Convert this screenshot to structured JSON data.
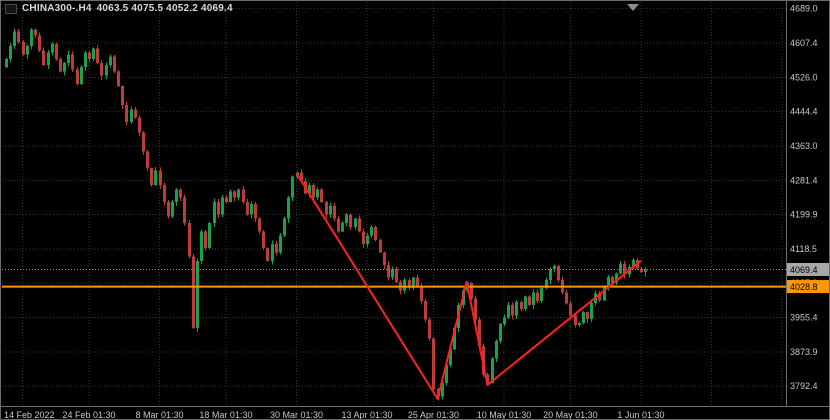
{
  "header": {
    "symbol_period": "CHINA300-.H4",
    "ohlc": "4063.5 4075.5 4052.2 4069.4"
  },
  "colors": {
    "background": "#000000",
    "grid": "#333333",
    "axis_line": "#6e6e6e",
    "axis_text": "#c8c8c8",
    "bull": "#17a24e",
    "bear": "#c23b3b",
    "trendline": "#ff2020",
    "hline": "#ff9800",
    "price_tag_bg": "#a8a8a8",
    "hline_tag_bg": "#ff9800",
    "tag_text": "#000000",
    "shift_marker": "#8c8c8c"
  },
  "chart_data": {
    "type": "candlestick",
    "symbol": "CHINA300-",
    "timeframe": "H4",
    "title": "CHINA300-.H4 4063.5 4075.5 4052.2 4069.4",
    "ylim": [
      3745,
      4705
    ],
    "y_ticks": [
      4689.0,
      4607.4,
      4526.0,
      4444.4,
      4363.0,
      4281.4,
      4199.9,
      4118.5,
      4037.0,
      3955.4,
      3873.9,
      3792.4
    ],
    "x_ticks": [
      {
        "index": 4,
        "label": "14 Feb 2022"
      },
      {
        "index": 20,
        "label": "24 Feb 01:30"
      },
      {
        "index": 37,
        "label": "8 Mar 01:30"
      },
      {
        "index": 53,
        "label": "18 Mar 01:30"
      },
      {
        "index": 70,
        "label": "30 Mar 01:30"
      },
      {
        "index": 87,
        "label": "13 Apr 01:30"
      },
      {
        "index": 103,
        "label": "25 Apr 01:30"
      },
      {
        "index": 120,
        "label": "10 May 01:30"
      },
      {
        "index": 136,
        "label": "20 May 01:30"
      },
      {
        "index": 153,
        "label": "1 Jun 01:30"
      },
      {
        "index": 170,
        "label": ""
      },
      {
        "index": 187,
        "label": ""
      }
    ],
    "current_bar": {
      "open": 4063.5,
      "high": 4075.5,
      "low": 4052.2,
      "close": 4069.4
    },
    "current_price": 4069.4,
    "current_price_label": "4069.4",
    "horizontal_line": {
      "price": 4028.8,
      "label": "4028.8"
    },
    "trendline": {
      "points": [
        [
          70,
          4298
        ],
        [
          104,
          3762
        ],
        [
          111,
          4040
        ],
        [
          116,
          3795
        ],
        [
          153,
          4090
        ]
      ]
    },
    "first_open": 4550,
    "closes": [
      4570,
      4600,
      4635,
      4610,
      4580,
      4600,
      4640,
      4625,
      4590,
      4555,
      4585,
      4605,
      4570,
      4540,
      4560,
      4580,
      4545,
      4510,
      4550,
      4585,
      4570,
      4595,
      4560,
      4530,
      4555,
      4575,
      4540,
      4505,
      4460,
      4420,
      4450,
      4430,
      4395,
      4350,
      4310,
      4270,
      4305,
      4270,
      4230,
      4195,
      4230,
      4260,
      4240,
      4180,
      4100,
      3930,
      4090,
      4160,
      4120,
      4180,
      4230,
      4200,
      4240,
      4230,
      4255,
      4240,
      4260,
      4230,
      4200,
      4225,
      4190,
      4160,
      4120,
      4090,
      4130,
      4110,
      4150,
      4190,
      4240,
      4290,
      4300,
      4280,
      4250,
      4270,
      4240,
      4260,
      4230,
      4200,
      4220,
      4190,
      4160,
      4180,
      4200,
      4170,
      4190,
      4160,
      4130,
      4150,
      4170,
      4140,
      4110,
      4080,
      4050,
      4070,
      4040,
      4020,
      4045,
      4025,
      4050,
      4030,
      3995,
      3950,
      3905,
      3785,
      3768,
      3800,
      3842,
      3880,
      3930,
      3985,
      4020,
      4037,
      4000,
      3950,
      3888,
      3820,
      3800,
      3858,
      3900,
      3940,
      3955,
      3985,
      3960,
      3992,
      3975,
      4005,
      3985,
      4015,
      3995,
      4025,
      4045,
      4070,
      4078,
      4045,
      4015,
      3988,
      3960,
      3938,
      3942,
      3968,
      3952,
      3990,
      4012,
      3996,
      4028,
      4052,
      4038,
      4060,
      4082,
      4058,
      4075,
      4092,
      4072,
      4063.5,
      4069.4
    ]
  }
}
